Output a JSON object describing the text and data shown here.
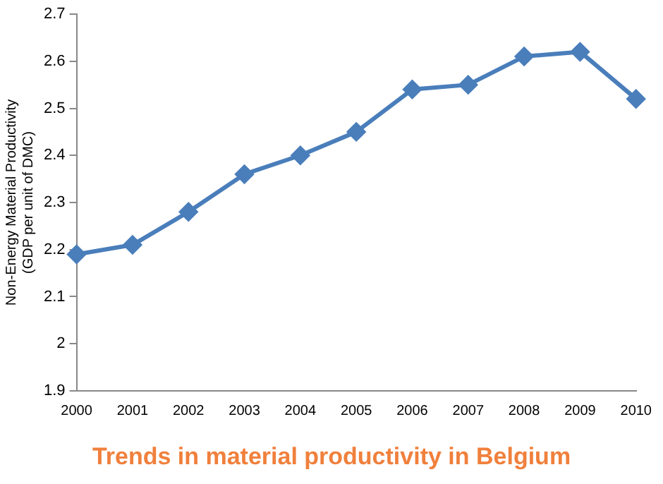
{
  "chart_data": {
    "type": "line",
    "title": "Trends in material productivity in Belgium",
    "ylabel": "Non-Energy Material Productivity\n(GDP per unit of DMC)",
    "categories": [
      "2000",
      "2001",
      "2002",
      "2003",
      "2004",
      "2005",
      "2006",
      "2007",
      "2008",
      "2009",
      "2010"
    ],
    "series": [
      {
        "color": "#4a7ebb",
        "values": [
          2.19,
          2.21,
          2.28,
          2.36,
          2.4,
          2.45,
          2.54,
          2.55,
          2.61,
          2.62,
          2.52
        ]
      }
    ],
    "ylim": [
      1.9,
      2.7
    ],
    "yticks": [
      1.9,
      2,
      2.1,
      2.2,
      2.3,
      2.4,
      2.5,
      2.6,
      2.7
    ],
    "grid": false,
    "legend": false,
    "marker": "diamond",
    "line_style": "solid"
  }
}
